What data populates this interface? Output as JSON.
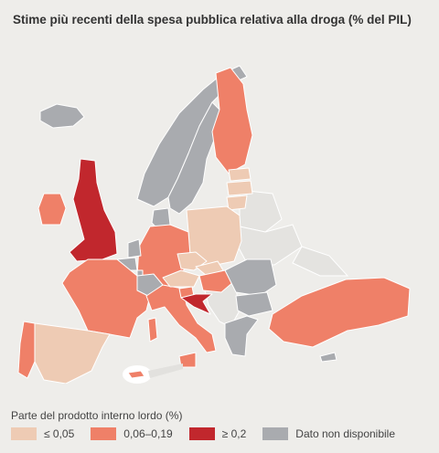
{
  "title": "Stime più recenti della spesa pubblica relativa alla droga (% del PIL)",
  "legend": {
    "title": "Parte del prodotto interno lordo (%)",
    "items": [
      {
        "label": "≤ 0,05",
        "color": "#eecbb4"
      },
      {
        "label": "0,06–0,19",
        "color": "#ef8068"
      },
      {
        "label": "≥ 0,2",
        "color": "#c1272d"
      },
      {
        "label": "Dato non disponibile",
        "color": "#a9abaf"
      }
    ]
  },
  "colors": {
    "background": "#eeedea",
    "sea": "#eeedea",
    "no_eu": "#e4e3e0",
    "border": "#ffffff"
  },
  "regions": [
    {
      "name": "iceland",
      "category": "none"
    },
    {
      "name": "norway",
      "category": "none"
    },
    {
      "name": "sweden",
      "category": "none"
    },
    {
      "name": "finland",
      "category": "mid"
    },
    {
      "name": "estonia",
      "category": "low"
    },
    {
      "name": "latvia",
      "category": "low"
    },
    {
      "name": "lithuania",
      "category": "low"
    },
    {
      "name": "poland",
      "category": "low"
    },
    {
      "name": "germany",
      "category": "mid"
    },
    {
      "name": "denmark",
      "category": "none"
    },
    {
      "name": "netherlands",
      "category": "none"
    },
    {
      "name": "belgium",
      "category": "none"
    },
    {
      "name": "luxembourg",
      "category": "none"
    },
    {
      "name": "uk",
      "category": "high"
    },
    {
      "name": "ireland",
      "category": "mid"
    },
    {
      "name": "france",
      "category": "mid"
    },
    {
      "name": "spain",
      "category": "low"
    },
    {
      "name": "portugal",
      "category": "mid"
    },
    {
      "name": "italy",
      "category": "mid"
    },
    {
      "name": "switzerland",
      "category": "none"
    },
    {
      "name": "austria",
      "category": "low"
    },
    {
      "name": "czechia",
      "category": "low"
    },
    {
      "name": "slovakia",
      "category": "low"
    },
    {
      "name": "hungary",
      "category": "mid"
    },
    {
      "name": "slovenia",
      "category": "mid"
    },
    {
      "name": "croatia",
      "category": "high"
    },
    {
      "name": "romania",
      "category": "none"
    },
    {
      "name": "bulgaria",
      "category": "none"
    },
    {
      "name": "greece",
      "category": "none"
    },
    {
      "name": "turkey",
      "category": "mid"
    },
    {
      "name": "cyprus",
      "category": "none"
    },
    {
      "name": "malta",
      "category": "mid"
    }
  ]
}
